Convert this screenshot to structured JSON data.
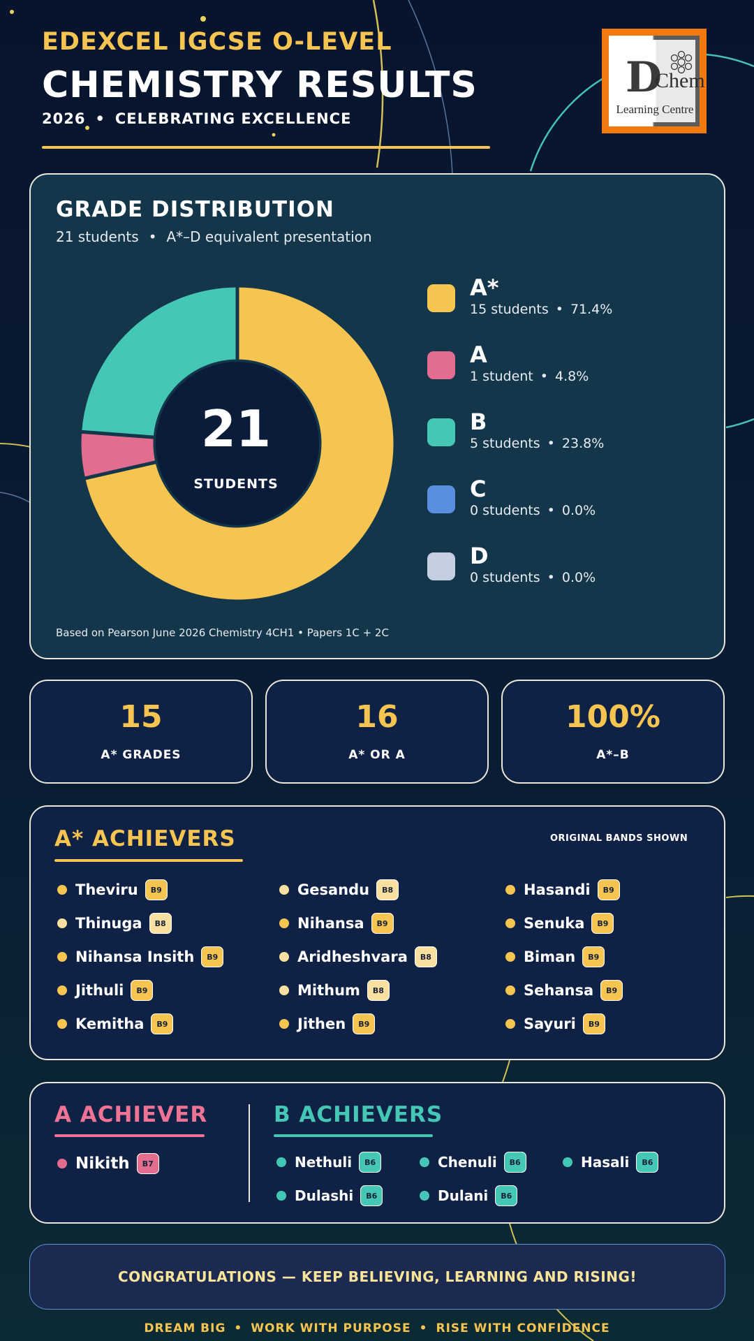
{
  "header": {
    "line1": "EDEXCEL IGCSE O-LEVEL",
    "line2": "CHEMISTRY RESULTS",
    "year": "2026",
    "tagline": "CELEBRATING EXCELLENCE",
    "sep": "•"
  },
  "logo": {
    "letter": "D",
    "word": "Chem",
    "subtitle": "Learning Centre",
    "colors": {
      "frame": "#f2790f",
      "dark": "#5d5d5d"
    }
  },
  "distribution": {
    "title": "GRADE DISTRIBUTION",
    "subtitle_count": "21 students",
    "subtitle_note": "A*–D equivalent presentation",
    "sep": "•",
    "center_value": "21",
    "center_label": "STUDENTS",
    "footnote": "Based on Pearson June 2026 Chemistry 4CH1 • Papers 1C + 2C"
  },
  "chart_data": {
    "type": "pie",
    "title": "GRADE DISTRIBUTION",
    "total": 21,
    "labels": [
      "A*",
      "A",
      "B",
      "C",
      "D"
    ],
    "values": [
      15,
      1,
      5,
      0,
      0
    ],
    "counts_text": [
      "15 students",
      "1 student",
      "5 students",
      "0 students",
      "0 students"
    ],
    "percents_text": [
      "71.4%",
      "4.8%",
      "23.8%",
      "0.0%",
      "0.0%"
    ],
    "colors": [
      "#f5c451",
      "#e26d8e",
      "#45c7b6",
      "#5a8fe0",
      "#c4d0e2"
    ],
    "legend_position": "right"
  },
  "stats": [
    {
      "value": "15",
      "label": "A* GRADES"
    },
    {
      "value": "16",
      "label": "A* OR A"
    },
    {
      "value": "100%",
      "label": "A*–B"
    }
  ],
  "astar": {
    "title": "A* ACHIEVERS",
    "note": "ORIGINAL BANDS SHOWN",
    "columns": [
      [
        {
          "name": "Theviru",
          "band": "B9"
        },
        {
          "name": "Thinuga",
          "band": "B8"
        },
        {
          "name": "Nihansa Insith",
          "band": "B9"
        },
        {
          "name": "Jithuli",
          "band": "B9"
        },
        {
          "name": "Kemitha",
          "band": "B9"
        }
      ],
      [
        {
          "name": "Gesandu",
          "band": "B8"
        },
        {
          "name": "Nihansa",
          "band": "B9"
        },
        {
          "name": "Aridheshvara",
          "band": "B8"
        },
        {
          "name": "Mithum",
          "band": "B8"
        },
        {
          "name": "Jithen",
          "band": "B9"
        }
      ],
      [
        {
          "name": "Hasandi",
          "band": "B9"
        },
        {
          "name": "Senuka",
          "band": "B9"
        },
        {
          "name": "Biman",
          "band": "B9"
        },
        {
          "name": "Sehansa",
          "band": "B9"
        },
        {
          "name": "Sayuri",
          "band": "B9"
        }
      ]
    ],
    "colors": {
      "B9": "#f5c451",
      "B8": "#f9e0a0"
    }
  },
  "a_achievers": {
    "title": "A ACHIEVER",
    "items": [
      {
        "name": "Nikith",
        "band": "B7"
      }
    ],
    "color": "#e26d8e"
  },
  "b_achievers": {
    "title": "B ACHIEVERS",
    "items": [
      {
        "name": "Nethuli",
        "band": "B6"
      },
      {
        "name": "Chenuli",
        "band": "B6"
      },
      {
        "name": "Hasali",
        "band": "B6"
      },
      {
        "name": "Dulashi",
        "band": "B6"
      },
      {
        "name": "Dulani",
        "band": "B6"
      }
    ],
    "color": "#45c7b6"
  },
  "banner": {
    "text": "CONGRATULATIONS — KEEP BELIEVING, LEARNING AND RISING!"
  },
  "footer": {
    "parts": [
      "DREAM BIG",
      "WORK WITH PURPOSE",
      "RISE WITH CONFIDENCE"
    ],
    "sep": "•"
  }
}
